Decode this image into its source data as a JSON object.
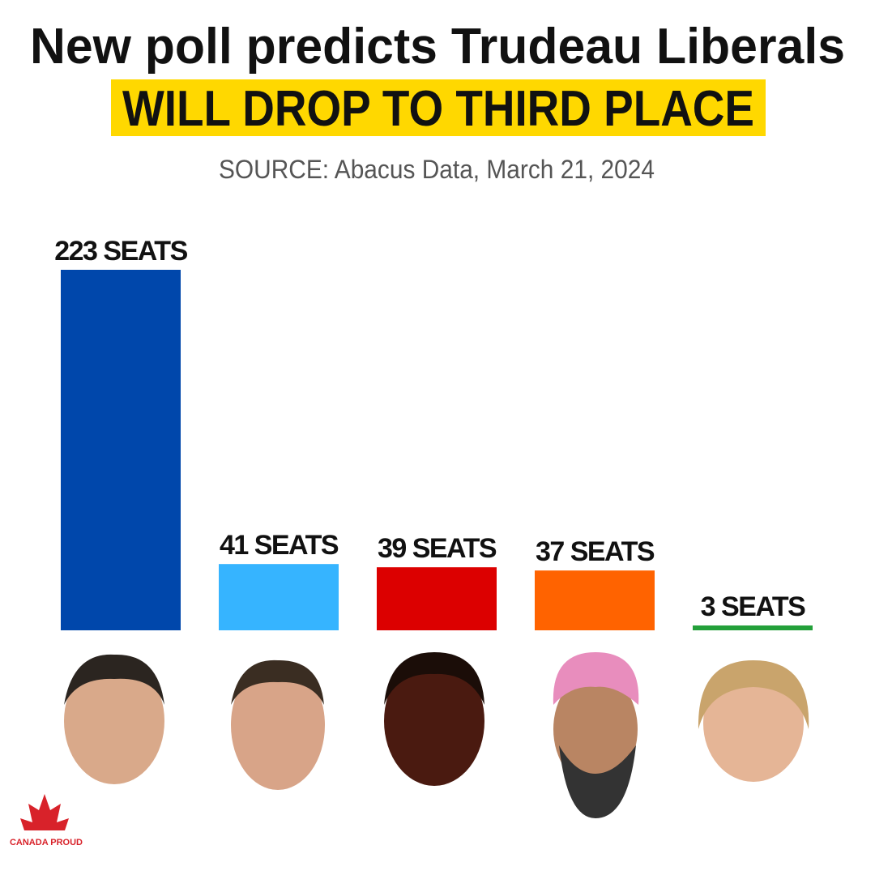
{
  "chart_data": {
    "type": "bar",
    "title": "New poll predicts Trudeau Liberals",
    "subtitle": "WILL DROP TO THIRD PLACE",
    "source": "SOURCE: Abacus Data, March 21, 2024",
    "categories": [
      null,
      null,
      null,
      null,
      null
    ],
    "values": [
      223,
      41,
      39,
      37,
      3
    ],
    "value_labels": [
      "223 SEATS",
      "41 SEATS",
      "39 SEATS",
      "37 SEATS",
      "3 SEATS"
    ],
    "colors": [
      "#0047ab",
      "#36b4ff",
      "#dc0000",
      "#ff6300",
      "#23a03a"
    ],
    "logo_text": "CANADA PROUD"
  }
}
